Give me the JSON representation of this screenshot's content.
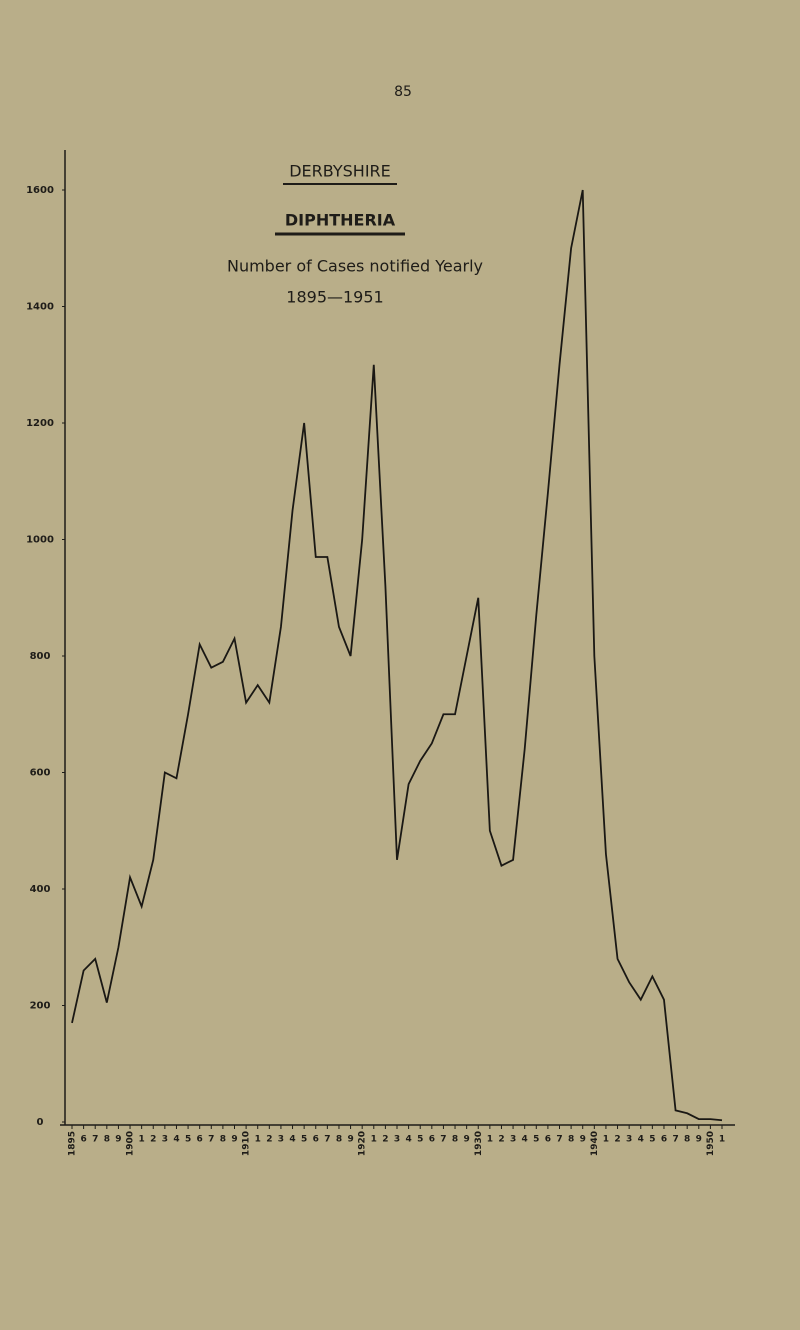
{
  "page": {
    "number": "85"
  },
  "chart_data": {
    "type": "line",
    "title": "DERBYSHIRE",
    "subtitle": "DIPHTHERIA",
    "description": "Number of Cases notified Yearly",
    "period": "1895—1951",
    "x": [
      1895,
      1896,
      1897,
      1898,
      1899,
      1900,
      1901,
      1902,
      1903,
      1904,
      1905,
      1906,
      1907,
      1908,
      1909,
      1910,
      1911,
      1912,
      1913,
      1914,
      1915,
      1916,
      1917,
      1918,
      1919,
      1920,
      1921,
      1922,
      1923,
      1924,
      1925,
      1926,
      1927,
      1928,
      1929,
      1930,
      1931,
      1932,
      1933,
      1934,
      1935,
      1936,
      1937,
      1938,
      1939,
      1940,
      1941,
      1942,
      1943,
      1944,
      1945,
      1946,
      1947,
      1948,
      1949,
      1950,
      1951
    ],
    "series": [
      {
        "name": "Diphtheria cases",
        "color": "#1a1814",
        "values": [
          170,
          260,
          280,
          205,
          300,
          420,
          370,
          450,
          600,
          590,
          700,
          820,
          780,
          790,
          830,
          720,
          750,
          720,
          850,
          1050,
          1200,
          970,
          970,
          850,
          800,
          1000,
          1300,
          920,
          450,
          580,
          620,
          650,
          700,
          700,
          800,
          900,
          500,
          440,
          450,
          640,
          870,
          1080,
          1300,
          1500,
          1600,
          800,
          460,
          280,
          240,
          210,
          250,
          210,
          20,
          15,
          5,
          5,
          3
        ]
      }
    ],
    "ylim": [
      0,
      1600
    ],
    "yticks": [
      0,
      200,
      400,
      600,
      800,
      1000,
      1200,
      1400,
      1600
    ],
    "xlim": [
      1895,
      1951
    ],
    "xticks": [
      {
        "value": 1895,
        "label": "1895"
      },
      {
        "value": 1896,
        "label": "6"
      },
      {
        "value": 1897,
        "label": "7"
      },
      {
        "value": 1898,
        "label": "8"
      },
      {
        "value": 1899,
        "label": "9"
      },
      {
        "value": 1900,
        "label": "1900"
      },
      {
        "value": 1901,
        "label": "1"
      },
      {
        "value": 1902,
        "label": "2"
      },
      {
        "value": 1903,
        "label": "3"
      },
      {
        "value": 1904,
        "label": "4"
      },
      {
        "value": 1905,
        "label": "5"
      },
      {
        "value": 1906,
        "label": "6"
      },
      {
        "value": 1907,
        "label": "7"
      },
      {
        "value": 1908,
        "label": "8"
      },
      {
        "value": 1909,
        "label": "9"
      },
      {
        "value": 1910,
        "label": "1910"
      },
      {
        "value": 1911,
        "label": "1"
      },
      {
        "value": 1912,
        "label": "2"
      },
      {
        "value": 1913,
        "label": "3"
      },
      {
        "value": 1914,
        "label": "4"
      },
      {
        "value": 1915,
        "label": "5"
      },
      {
        "value": 1916,
        "label": "6"
      },
      {
        "value": 1917,
        "label": "7"
      },
      {
        "value": 1918,
        "label": "8"
      },
      {
        "value": 1919,
        "label": "9"
      },
      {
        "value": 1920,
        "label": "1920"
      },
      {
        "value": 1921,
        "label": "1"
      },
      {
        "value": 1922,
        "label": "2"
      },
      {
        "value": 1923,
        "label": "3"
      },
      {
        "value": 1924,
        "label": "4"
      },
      {
        "value": 1925,
        "label": "5"
      },
      {
        "value": 1926,
        "label": "6"
      },
      {
        "value": 1927,
        "label": "7"
      },
      {
        "value": 1928,
        "label": "8"
      },
      {
        "value": 1929,
        "label": "9"
      },
      {
        "value": 1930,
        "label": "1930"
      },
      {
        "value": 1931,
        "label": "1"
      },
      {
        "value": 1932,
        "label": "2"
      },
      {
        "value": 1933,
        "label": "3"
      },
      {
        "value": 1934,
        "label": "4"
      },
      {
        "value": 1935,
        "label": "5"
      },
      {
        "value": 1936,
        "label": "6"
      },
      {
        "value": 1937,
        "label": "7"
      },
      {
        "value": 1938,
        "label": "8"
      },
      {
        "value": 1939,
        "label": "9"
      },
      {
        "value": 1940,
        "label": "1940"
      },
      {
        "value": 1941,
        "label": "1"
      },
      {
        "value": 1942,
        "label": "2"
      },
      {
        "value": 1943,
        "label": "3"
      },
      {
        "value": 1944,
        "label": "4"
      },
      {
        "value": 1945,
        "label": "5"
      },
      {
        "value": 1946,
        "label": "6"
      },
      {
        "value": 1947,
        "label": "7"
      },
      {
        "value": 1948,
        "label": "8"
      },
      {
        "value": 1949,
        "label": "9"
      },
      {
        "value": 1950,
        "label": "1950"
      },
      {
        "value": 1951,
        "label": "1"
      }
    ],
    "grid": false
  }
}
